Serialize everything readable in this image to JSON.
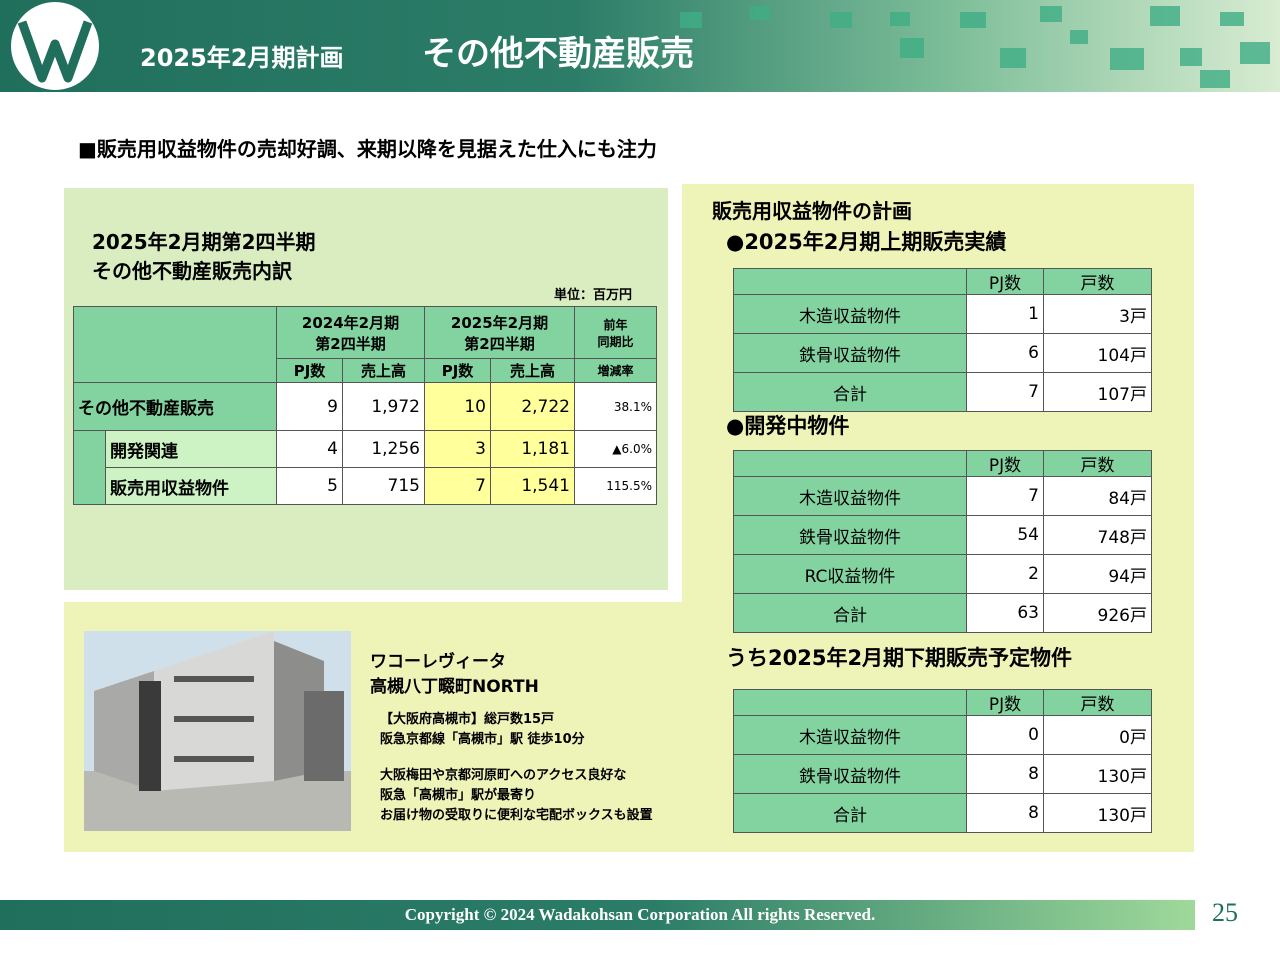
{
  "header": {
    "subtitle": "2025年2月期計画",
    "title": "その他不動産販売"
  },
  "headline": "■販売用収益物件の売却好調、来期以降を見据えた仕入にも注力",
  "breakdown": {
    "title_lines": [
      "2025年2月期第2四半期",
      "その他不動産販売内訳"
    ],
    "unit": "単位：百万円",
    "group_headers": [
      [
        "2024年2月期",
        "第2四半期"
      ],
      [
        "2025年2月期",
        "第2四半期"
      ],
      [
        "前年",
        "同期比"
      ]
    ],
    "sub_headers": [
      "PJ数",
      "売上高",
      "PJ数",
      "売上高",
      "増減率"
    ],
    "rows": [
      [
        "その他不動産販売",
        "9",
        "1,972",
        "10",
        "2,722",
        "38.1%"
      ],
      [
        "開発関連",
        "4",
        "1,256",
        "3",
        "1,181",
        "▲6.0%"
      ],
      [
        "販売用収益物件",
        "5",
        "715",
        "7",
        "1,541",
        "115.5%"
      ]
    ]
  },
  "plan": {
    "title": "販売用収益物件の計画",
    "sections": [
      {
        "heading": "●2025年2月期上期販売実績",
        "columns": [
          "PJ数",
          "戸数"
        ],
        "rows": [
          [
            "木造収益物件",
            "1",
            "3戸"
          ],
          [
            "鉄骨収益物件",
            "6",
            "104戸"
          ],
          [
            "合計",
            "7",
            "107戸"
          ]
        ]
      },
      {
        "heading": "●開発中物件",
        "columns": [
          "PJ数",
          "戸数"
        ],
        "rows": [
          [
            "木造収益物件",
            "7",
            "84戸"
          ],
          [
            "鉄骨収益物件",
            "54",
            "748戸"
          ],
          [
            "RC収益物件",
            "2",
            "94戸"
          ],
          [
            "合計",
            "63",
            "926戸"
          ]
        ]
      },
      {
        "heading": "うち2025年2月期下期販売予定物件",
        "columns": [
          "PJ数",
          "戸数"
        ],
        "rows": [
          [
            "木造収益物件",
            "0",
            "0戸"
          ],
          [
            "鉄骨収益物件",
            "8",
            "130戸"
          ],
          [
            "合計",
            "8",
            "130戸"
          ]
        ]
      }
    ]
  },
  "property": {
    "name_lines": [
      "ワコーレヴィータ",
      "高槻八丁畷町NORTH"
    ],
    "access_lines": [
      "【大阪府高槻市】総戸数15戸",
      "阪急京都線「高槻市」駅 徒歩10分"
    ],
    "feature_lines": [
      "大阪梅田や京都河原町へのアクセス良好な",
      "阪急「高槻市」駅が最寄り",
      "お届け物の受取りに便利な宅配ボックスも設置"
    ]
  },
  "footer": {
    "copyright": "Copyright © 2024  Wadakohsan Corporation All rights Reserved.",
    "page": "25"
  }
}
